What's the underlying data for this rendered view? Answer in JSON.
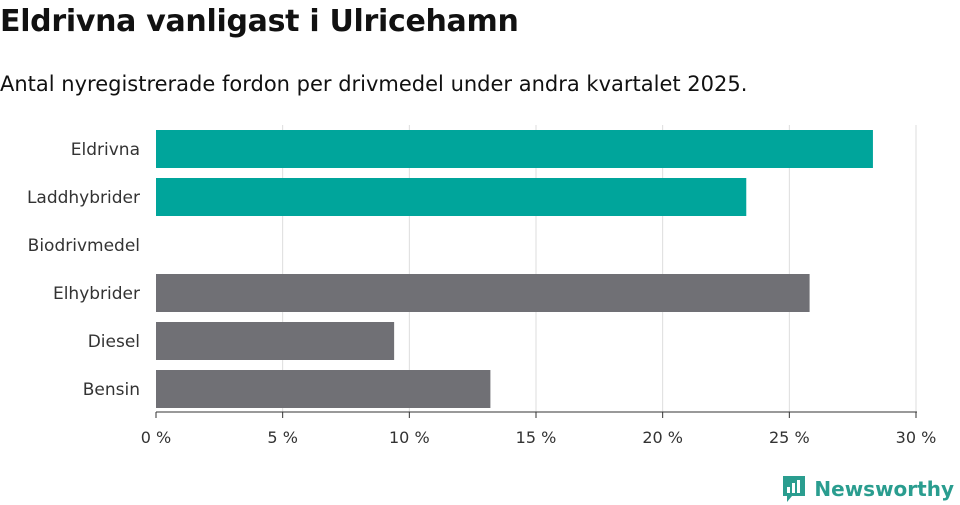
{
  "header": {
    "title": "Eldrivna vanligast i Ulricehamn",
    "subtitle": "Antal nyregistrerade fordon per drivmedel under andra kvartalet 2025."
  },
  "brand": {
    "name": "Newsworthy",
    "logo_icon": "newsworthy-bar-chart-icon",
    "color": "#2a9d8f"
  },
  "chart_data": {
    "type": "bar",
    "orientation": "horizontal",
    "categories": [
      "Eldrivna",
      "Laddhybrider",
      "Biodrivmedel",
      "Elhybrider",
      "Diesel",
      "Bensin"
    ],
    "values": [
      28.3,
      23.3,
      0,
      25.8,
      9.4,
      13.2
    ],
    "colors": [
      "#00a59b",
      "#00a59b",
      "#00a59b",
      "#707075",
      "#707075",
      "#707075"
    ],
    "xlim": [
      0,
      30
    ],
    "xticks": [
      0,
      5,
      10,
      15,
      20,
      25,
      30
    ],
    "xtick_labels": [
      "0 %",
      "5 %",
      "10 %",
      "15 %",
      "20 %",
      "25 %",
      "30 %"
    ],
    "grid": true,
    "xlabel": "",
    "ylabel": ""
  }
}
